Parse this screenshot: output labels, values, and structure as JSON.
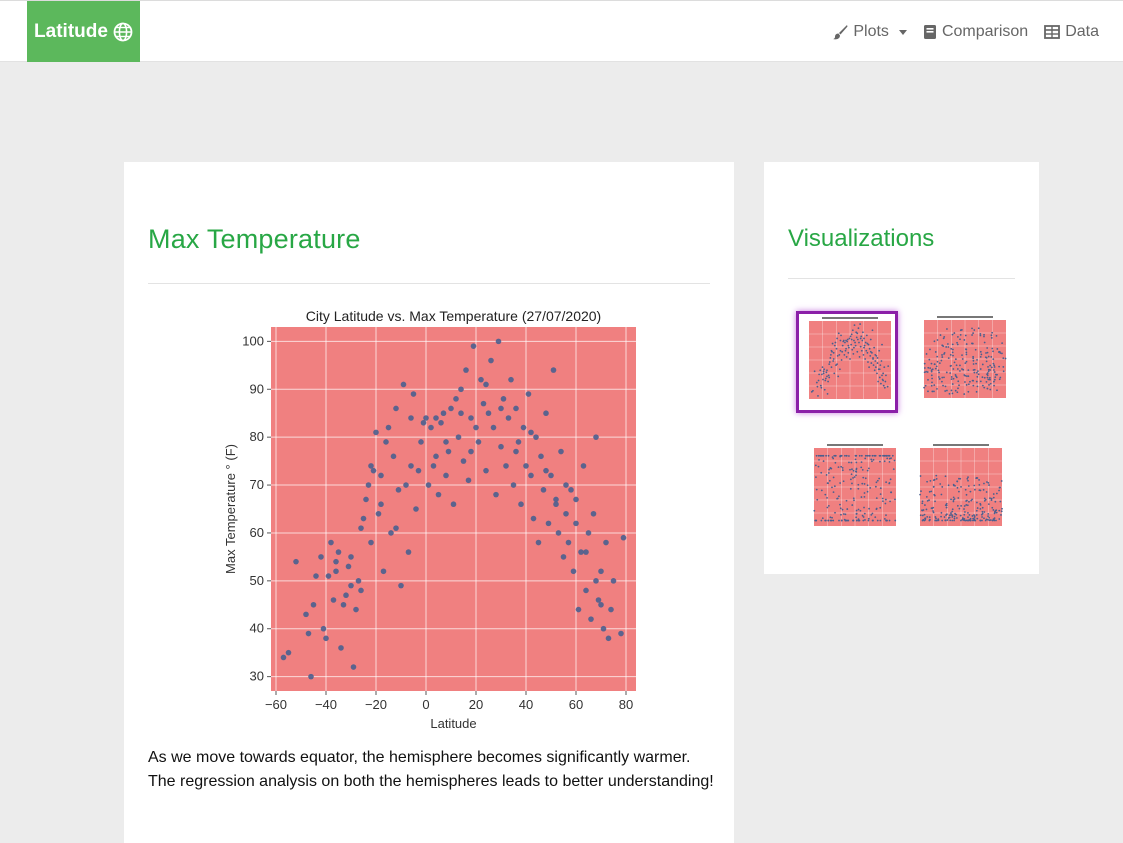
{
  "navbar": {
    "brand": "Latitude",
    "items": [
      {
        "label": "Plots",
        "icon": "paintbrush-icon",
        "dropdown": true
      },
      {
        "label": "Comparison",
        "icon": "book-icon"
      },
      {
        "label": "Data",
        "icon": "table-icon"
      }
    ]
  },
  "main": {
    "title": "Max Temperature",
    "description": "As we move towards equator, the hemisphere becomes significantly warmer. The regression analysis on both the hemispheres leads to better understanding!"
  },
  "sidebar": {
    "title": "Visualizations",
    "thumbnails": [
      {
        "name": "thumbnail-max-temperature",
        "caption": "City Latitude vs. Max Temperature (27/07/2020)",
        "active": true
      },
      {
        "name": "thumbnail-humidity",
        "caption": "City Latitude vs. Humidity (27/07/2020)",
        "active": false
      },
      {
        "name": "thumbnail-cloudiness",
        "caption": "City Latitude vs. Cloudiness (27/07/2020)",
        "active": false
      },
      {
        "name": "thumbnail-wind-speed",
        "caption": "City Latitude vs. Wind Speed (27/07/2020)",
        "active": false
      }
    ]
  },
  "colors": {
    "brand": "#5cb85c",
    "heading": "#28a745",
    "plot_background": "#f08080",
    "marker": "#4a5f8f",
    "active_thumbnail_border": "#8b1fa8"
  },
  "chart_data": {
    "type": "scatter",
    "title": "City Latitude vs. Max Temperature (27/07/2020)",
    "xlabel": "Latitude",
    "ylabel": "Max Temperature ° (F)",
    "xlim": [
      -62,
      84
    ],
    "ylim": [
      27,
      103
    ],
    "xticks": [
      -60,
      -40,
      -20,
      0,
      20,
      40,
      60,
      80
    ],
    "yticks": [
      30,
      40,
      50,
      60,
      70,
      80,
      90,
      100
    ],
    "xtick_labels": [
      "−60",
      "−40",
      "−20",
      "0",
      "20",
      "40",
      "60",
      "80"
    ],
    "ytick_labels": [
      "30",
      "40",
      "50",
      "60",
      "70",
      "80",
      "90",
      "100"
    ],
    "grid": true,
    "points": [
      [
        -57,
        34
      ],
      [
        -55,
        35
      ],
      [
        -47,
        39
      ],
      [
        -46,
        30
      ],
      [
        -45,
        45
      ],
      [
        -44,
        51
      ],
      [
        -42,
        55
      ],
      [
        -41,
        40
      ],
      [
        -40,
        38
      ],
      [
        -39,
        51
      ],
      [
        -38,
        58
      ],
      [
        -37,
        46
      ],
      [
        -36,
        54
      ],
      [
        -35,
        56
      ],
      [
        -34,
        36
      ],
      [
        -33,
        45
      ],
      [
        -32,
        47
      ],
      [
        -31,
        53
      ],
      [
        -30,
        55
      ],
      [
        -29,
        32
      ],
      [
        -28,
        44
      ],
      [
        -27,
        50
      ],
      [
        -26,
        61
      ],
      [
        -25,
        63
      ],
      [
        -24,
        67
      ],
      [
        -23,
        70
      ],
      [
        -22,
        58
      ],
      [
        -21,
        73
      ],
      [
        -20,
        81
      ],
      [
        -19,
        64
      ],
      [
        -18,
        72
      ],
      [
        -17,
        52
      ],
      [
        -16,
        79
      ],
      [
        -15,
        82
      ],
      [
        -14,
        60
      ],
      [
        -13,
        76
      ],
      [
        -12,
        86
      ],
      [
        -11,
        69
      ],
      [
        -10,
        49
      ],
      [
        -9,
        91
      ],
      [
        -8,
        70
      ],
      [
        -7,
        56
      ],
      [
        -6,
        84
      ],
      [
        -5,
        89
      ],
      [
        -4,
        65
      ],
      [
        -3,
        73
      ],
      [
        -2,
        79
      ],
      [
        -1,
        83
      ],
      [
        0,
        84
      ],
      [
        1,
        70
      ],
      [
        2,
        82
      ],
      [
        3,
        74
      ],
      [
        4,
        76
      ],
      [
        5,
        68
      ],
      [
        6,
        83
      ],
      [
        7,
        85
      ],
      [
        8,
        72
      ],
      [
        9,
        77
      ],
      [
        10,
        86
      ],
      [
        11,
        66
      ],
      [
        12,
        88
      ],
      [
        13,
        80
      ],
      [
        14,
        90
      ],
      [
        15,
        75
      ],
      [
        16,
        94
      ],
      [
        17,
        71
      ],
      [
        18,
        84
      ],
      [
        19,
        99
      ],
      [
        20,
        82
      ],
      [
        21,
        79
      ],
      [
        22,
        92
      ],
      [
        23,
        87
      ],
      [
        24,
        73
      ],
      [
        25,
        85
      ],
      [
        26,
        96
      ],
      [
        27,
        82
      ],
      [
        28,
        68
      ],
      [
        29,
        100
      ],
      [
        30,
        78
      ],
      [
        31,
        88
      ],
      [
        32,
        74
      ],
      [
        33,
        84
      ],
      [
        34,
        92
      ],
      [
        35,
        70
      ],
      [
        36,
        86
      ],
      [
        37,
        79
      ],
      [
        38,
        66
      ],
      [
        39,
        82
      ],
      [
        40,
        74
      ],
      [
        41,
        89
      ],
      [
        42,
        72
      ],
      [
        43,
        63
      ],
      [
        44,
        80
      ],
      [
        45,
        58
      ],
      [
        46,
        76
      ],
      [
        47,
        69
      ],
      [
        48,
        85
      ],
      [
        49,
        62
      ],
      [
        50,
        72
      ],
      [
        51,
        94
      ],
      [
        52,
        66
      ],
      [
        53,
        60
      ],
      [
        54,
        77
      ],
      [
        55,
        55
      ],
      [
        56,
        64
      ],
      [
        57,
        58
      ],
      [
        58,
        69
      ],
      [
        59,
        52
      ],
      [
        60,
        62
      ],
      [
        61,
        44
      ],
      [
        62,
        56
      ],
      [
        63,
        74
      ],
      [
        64,
        48
      ],
      [
        65,
        60
      ],
      [
        66,
        42
      ],
      [
        67,
        64
      ],
      [
        68,
        80
      ],
      [
        69,
        46
      ],
      [
        70,
        52
      ],
      [
        71,
        40
      ],
      [
        72,
        58
      ],
      [
        73,
        38
      ],
      [
        74,
        44
      ],
      [
        75,
        50
      ],
      [
        78,
        39
      ],
      [
        79,
        59
      ],
      [
        -52,
        54
      ],
      [
        -48,
        43
      ],
      [
        -36,
        52
      ],
      [
        -30,
        49
      ],
      [
        -26,
        48
      ],
      [
        -22,
        74
      ],
      [
        -18,
        66
      ],
      [
        -12,
        61
      ],
      [
        -6,
        74
      ],
      [
        4,
        84
      ],
      [
        8,
        79
      ],
      [
        14,
        85
      ],
      [
        18,
        77
      ],
      [
        24,
        91
      ],
      [
        30,
        86
      ],
      [
        36,
        77
      ],
      [
        42,
        81
      ],
      [
        48,
        73
      ],
      [
        52,
        67
      ],
      [
        56,
        70
      ],
      [
        60,
        67
      ],
      [
        64,
        56
      ],
      [
        68,
        50
      ],
      [
        70,
        45
      ]
    ]
  }
}
